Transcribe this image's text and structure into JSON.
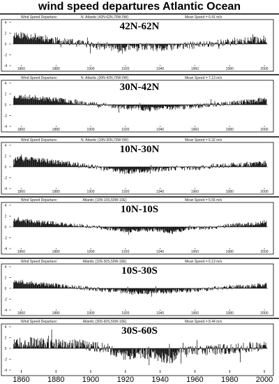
{
  "title": "wind speed departures Atlantic Ocean",
  "chart_data": [
    {
      "type": "bar",
      "header_label": "Wind Speed Departure:",
      "header_region": "N. Atlantic (42N-62N,70W-0W)",
      "header_mean": "Mean Speed = 6.41 m/s",
      "region_label": "42N-62N",
      "y_ticks": [
        "4",
        "2",
        "0",
        "-2",
        "-4"
      ],
      "x_ticks": [
        "1860",
        "1880",
        "1900",
        "1920",
        "1940",
        "1960",
        "1980",
        "2000"
      ],
      "xlim": [
        1855,
        2002
      ],
      "ylim": [
        -4,
        4
      ],
      "segments": [
        {
          "x": [
            1855,
            1870,
            1880,
            1890,
            1900,
            1910,
            1918,
            1925,
            1932,
            1940,
            1945,
            1950,
            1960,
            1970,
            1980,
            1990,
            2000
          ],
          "y": [
            1.8,
            1.3,
            0.6,
            0.2,
            -0.2,
            -0.5,
            -0.8,
            -0.6,
            -0.5,
            -0.9,
            -0.6,
            -0.4,
            -0.2,
            0.1,
            0.3,
            0.6,
            0.9
          ]
        }
      ],
      "noise": 0.7,
      "seed": 11
    },
    {
      "type": "bar",
      "header_label": "Wind Speed Departure:",
      "header_region": "N. Atlantic (30N-42N,70W-0W)",
      "header_mean": "Mean Speed = 7.13 m/s",
      "region_label": "30N-42N",
      "y_ticks": [
        "4",
        "2",
        "0",
        "-2",
        "-4"
      ],
      "x_ticks": [
        "1860",
        "1880",
        "1900",
        "1920",
        "1940",
        "1960",
        "1980",
        "2000"
      ],
      "xlim": [
        1855,
        2002
      ],
      "ylim": [
        -4,
        4
      ],
      "segments": [
        {
          "x": [
            1855,
            1865,
            1875,
            1885,
            1895,
            1905,
            1915,
            1925,
            1935,
            1942,
            1950,
            1960,
            1970,
            1980,
            1990,
            2000
          ],
          "y": [
            1.5,
            1.4,
            1.1,
            0.8,
            0.4,
            0.0,
            -0.3,
            -0.6,
            -0.8,
            -0.6,
            -0.5,
            -0.3,
            0.0,
            0.3,
            0.6,
            0.9
          ]
        }
      ],
      "noise": 0.45,
      "seed": 23
    },
    {
      "type": "bar",
      "header_label": "Wind Speed Departure:",
      "header_region": "N. Atlantic (10N-30N,70W-0W)",
      "header_mean": "Mean Speed = 6.32 m/s",
      "region_label": "10N-30N",
      "y_ticks": [
        "4",
        "2",
        "0",
        "-2",
        "-4"
      ],
      "x_ticks": [
        "1860",
        "1880",
        "1900",
        "1920",
        "1940",
        "1960",
        "1980",
        "2000"
      ],
      "xlim": [
        1855,
        2002
      ],
      "ylim": [
        -4,
        4
      ],
      "segments": [
        {
          "x": [
            1855,
            1865,
            1875,
            1885,
            1895,
            1905,
            1912,
            1920,
            1930,
            1940,
            1950,
            1960,
            1970,
            1980,
            1990,
            2000
          ],
          "y": [
            1.6,
            1.4,
            1.1,
            0.7,
            0.3,
            -0.2,
            -0.6,
            -0.9,
            -0.7,
            -0.4,
            -0.3,
            -0.2,
            0.1,
            0.3,
            0.5,
            0.7
          ]
        }
      ],
      "noise": 0.45,
      "seed": 37
    },
    {
      "type": "bar",
      "header_label": "Wind Speed Departure:",
      "header_region": "Atlantic (10N-10S,50W-10E)",
      "header_mean": "Mean Speed = 5.56 m/s",
      "region_label": "10N-10S",
      "y_ticks": [
        "4",
        "2",
        "0",
        "-2",
        "-4"
      ],
      "x_ticks": [
        "1860",
        "1880",
        "1900",
        "1920",
        "1940",
        "1960",
        "1980",
        "2000"
      ],
      "xlim": [
        1855,
        2002
      ],
      "ylim": [
        -4,
        4
      ],
      "segments": [
        {
          "x": [
            1855,
            1865,
            1875,
            1885,
            1895,
            1905,
            1915,
            1922,
            1930,
            1940,
            1946,
            1955,
            1965,
            1975,
            1985,
            1995,
            2000
          ],
          "y": [
            1.3,
            1.1,
            0.8,
            0.5,
            0.2,
            -0.1,
            -0.5,
            -0.8,
            -0.6,
            -0.6,
            -1.0,
            -0.4,
            -0.2,
            0.1,
            0.4,
            0.6,
            0.8
          ]
        }
      ],
      "noise": 0.35,
      "seed": 41
    },
    {
      "type": "bar",
      "header_label": "Wind Speed Departure:",
      "header_region": "Atlantic (10S-30S,50W-10E)",
      "header_mean": "Mean Speed = 6.13 m/s",
      "region_label": "10S-30S",
      "y_ticks": [
        "4",
        "2",
        "0",
        "-2",
        "-4"
      ],
      "x_ticks": [
        "1860",
        "1880",
        "1900",
        "1920",
        "1940",
        "1960",
        "1980",
        "2000"
      ],
      "xlim": [
        1855,
        2002
      ],
      "ylim": [
        -4,
        4
      ],
      "segments": [
        {
          "x": [
            1855,
            1865,
            1875,
            1885,
            1895,
            1905,
            1915,
            1925,
            1935,
            1945,
            1955,
            1965,
            1975,
            1985,
            1995,
            2000
          ],
          "y": [
            1.4,
            1.0,
            0.7,
            0.4,
            0.1,
            -0.2,
            -0.5,
            -0.8,
            -0.7,
            -0.6,
            -0.4,
            -0.2,
            0.1,
            0.3,
            0.5,
            0.7
          ]
        }
      ],
      "noise": 0.4,
      "seed": 53
    },
    {
      "type": "bar",
      "header_label": "Wind Speed Departure:",
      "header_region": "Atlantic (30S-60S,50W-10E)",
      "header_mean": "Mean Speed = 8.44 m/s",
      "region_label": "30S-60S",
      "y_ticks": [
        "4",
        "2",
        "0",
        "-2",
        "-4"
      ],
      "x_ticks": [
        "1860",
        "1880",
        "1900",
        "1920",
        "1940",
        "1960",
        "1980",
        "2000"
      ],
      "xlim": [
        1855,
        2002
      ],
      "ylim": [
        -4,
        4
      ],
      "segments": [
        {
          "x": [
            1855,
            1870,
            1885,
            1900,
            1910,
            1918,
            1925,
            1935,
            1942,
            1946,
            1950,
            1960,
            1970,
            1980,
            1990,
            2000
          ],
          "y": [
            1.3,
            1.0,
            0.8,
            0.5,
            0.0,
            -1.4,
            -0.9,
            -1.0,
            -1.8,
            -2.0,
            -0.8,
            -0.5,
            -0.3,
            0.0,
            0.2,
            0.4
          ]
        }
      ],
      "noise": 1.0,
      "seed": 67
    }
  ],
  "bottom_axis": [
    "1860",
    "1880",
    "1900",
    "1920",
    "1940",
    "1960",
    "1980",
    "2000"
  ]
}
